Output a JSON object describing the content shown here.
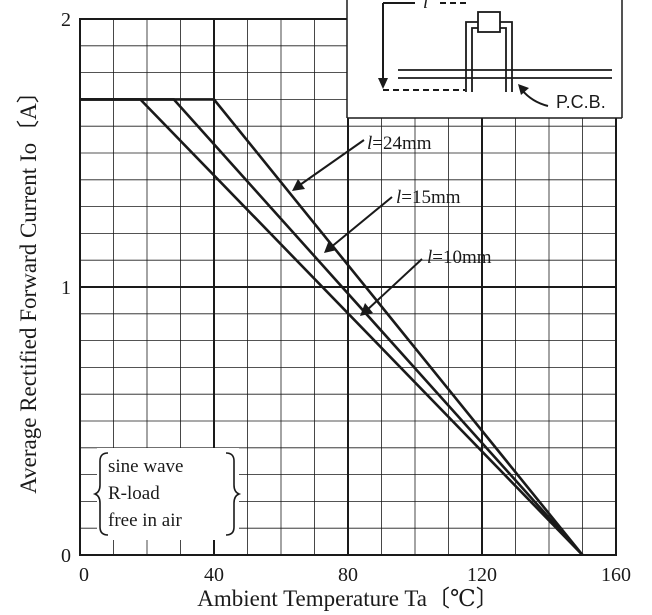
{
  "chart_data": {
    "type": "line",
    "xlabel": "Ambient Temperature Ta〔℃〕",
    "ylabel": "Average Rectified Forward Current Io〔A〕",
    "xlim": [
      0,
      160
    ],
    "ylim": [
      0,
      2
    ],
    "x_ticks": [
      "0",
      "40",
      "80",
      "120",
      "160"
    ],
    "y_ticks": [
      "0",
      "1",
      "2"
    ],
    "grid": true,
    "series": [
      {
        "name": "l=24mm",
        "label_prefix": "l",
        "label_rest": "=24mm",
        "x": [
          0,
          40,
          150
        ],
        "y": [
          1.7,
          1.7,
          0
        ]
      },
      {
        "name": "l=15mm",
        "label_prefix": "l",
        "label_rest": "=15mm",
        "x": [
          0,
          28,
          150
        ],
        "y": [
          1.7,
          1.7,
          0
        ]
      },
      {
        "name": "l=10mm",
        "label_prefix": "l",
        "label_rest": "=10mm",
        "x": [
          0,
          18,
          150
        ],
        "y": [
          1.7,
          1.7,
          0
        ]
      }
    ],
    "conditions": [
      "sine wave",
      "R-load",
      "free in air"
    ],
    "inset": {
      "length_symbol": "l",
      "board_label": "P.C.B."
    }
  }
}
